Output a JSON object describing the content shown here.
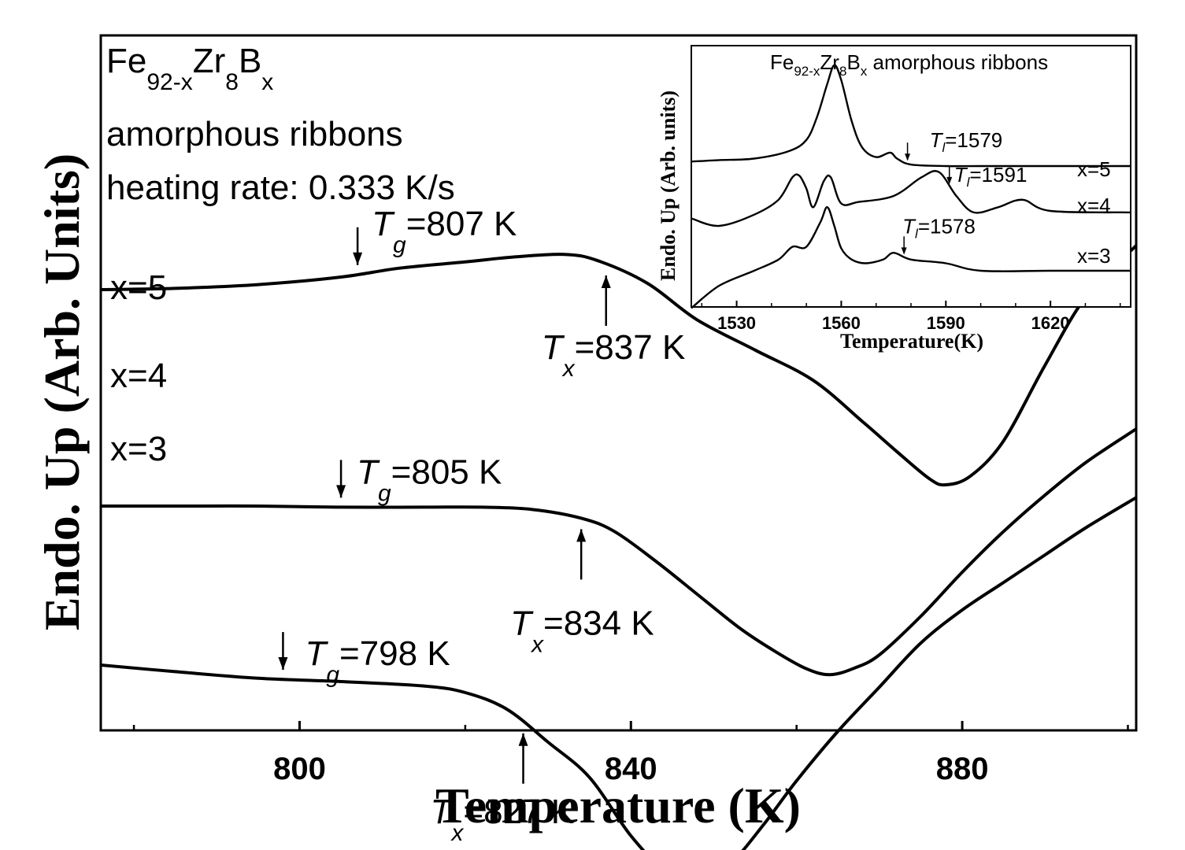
{
  "chart_data": [
    {
      "type": "line",
      "title": "",
      "xlabel": "Temperature (K)",
      "ylabel": "Endo. Up (Arb. Units)",
      "xlim": [
        776,
        901
      ],
      "x_ticks": [
        800,
        840,
        880
      ],
      "legend_text": {
        "line1_main": "Fe",
        "line1_sub1": "92-x",
        "line1_mid": "Zr",
        "line1_sub2": "8",
        "line1_end": "B",
        "line1_sub3": "x",
        "line2": "amorphous ribbons",
        "line3": "heating rate: 0.333 K/s"
      },
      "series": [
        {
          "name": "x=5",
          "x": [
            776,
            785,
            795,
            805,
            812,
            820,
            826,
            832,
            836,
            842,
            848,
            855,
            862,
            868,
            872,
            876,
            878,
            881,
            885,
            890,
            895,
            901
          ],
          "y": [
            0.1,
            0.11,
            0.14,
            0.2,
            0.27,
            0.32,
            0.36,
            0.38,
            0.33,
            0.15,
            -0.14,
            -0.38,
            -0.62,
            -0.95,
            -1.18,
            -1.4,
            -1.45,
            -1.38,
            -1.1,
            -0.5,
            0.05,
            0.45
          ],
          "annotations": [
            {
              "label_T": "T",
              "label_sub": "g",
              "label_rest": "=807 K",
              "x": 807,
              "direction": "down"
            },
            {
              "label_T": "T",
              "label_sub": "x",
              "label_rest": "=837 K",
              "x": 837,
              "direction": "up"
            }
          ]
        },
        {
          "name": "x=4",
          "x": [
            776,
            785,
            795,
            805,
            815,
            822,
            828,
            834,
            838,
            843,
            848,
            853,
            857,
            861,
            864,
            867,
            870,
            875,
            880,
            885,
            890,
            895,
            901
          ],
          "y": [
            -0.95,
            -0.95,
            -0.95,
            -0.96,
            -0.96,
            -0.96,
            -0.98,
            -1.06,
            -1.18,
            -1.45,
            -1.75,
            -2.05,
            -2.25,
            -2.42,
            -2.48,
            -2.42,
            -2.3,
            -1.95,
            -1.55,
            -1.18,
            -0.85,
            -0.55,
            -0.25
          ],
          "annotations": [
            {
              "label_T": "T",
              "label_sub": "g",
              "label_rest": "=805 K",
              "x": 805,
              "direction": "down"
            },
            {
              "label_T": "T",
              "label_sub": "x",
              "label_rest": "=834 K",
              "x": 834,
              "direction": "up"
            }
          ]
        },
        {
          "name": "x=3",
          "x": [
            776,
            785,
            795,
            805,
            815,
            820,
            825,
            830,
            835,
            840,
            844,
            848,
            852,
            856,
            860,
            865,
            870,
            875,
            880,
            885,
            890,
            895,
            901
          ],
          "y": [
            -1.8,
            -1.86,
            -1.92,
            -1.95,
            -1.99,
            -2.05,
            -2.2,
            -2.5,
            -2.82,
            -3.35,
            -3.65,
            -3.75,
            -3.6,
            -3.25,
            -2.85,
            -2.4,
            -2.0,
            -1.6,
            -1.3,
            -1.05,
            -0.8,
            -0.55,
            -0.28
          ],
          "annotations": [
            {
              "label_T": "T",
              "label_sub": "g",
              "label_rest": "=798 K",
              "x": 798,
              "direction": "down"
            },
            {
              "label_T": "T",
              "label_sub": "x",
              "label_rest": "=827 K",
              "x": 827,
              "direction": "up"
            }
          ]
        }
      ]
    },
    {
      "type": "line",
      "title_main": "Fe",
      "title_sub1": "92-x",
      "title_mid": "Zr",
      "title_sub2": "8",
      "title_end": "B",
      "title_sub3": "x",
      "title_rest": " amorphous ribbons",
      "xlabel": "Temperature(K)",
      "ylabel": "Endo. Up (Arb. units)",
      "xlim": [
        1517,
        1643
      ],
      "x_ticks": [
        1530,
        1560,
        1590,
        1620
      ],
      "series": [
        {
          "name": "x=5",
          "x": [
            1517,
            1525,
            1535,
            1545,
            1550,
            1553,
            1556,
            1558,
            1560,
            1563,
            1566,
            1570,
            1574,
            1576,
            1580,
            1590,
            1600,
            1620,
            1643
          ],
          "y": [
            0.26,
            0.28,
            0.3,
            0.4,
            0.55,
            0.85,
            1.3,
            1.55,
            1.35,
            0.8,
            0.45,
            0.32,
            0.38,
            0.3,
            0.22,
            0.2,
            0.2,
            0.2,
            0.2
          ],
          "annotations": [
            {
              "label_T": "T",
              "label_sub": "l",
              "label_rest": "=1579",
              "x": 1579
            }
          ]
        },
        {
          "name": "x=4",
          "x": [
            1517,
            1525,
            1535,
            1542,
            1546,
            1548,
            1550,
            1552,
            1555,
            1557,
            1560,
            1565,
            1575,
            1583,
            1588,
            1593,
            1598,
            1605,
            1612,
            1620,
            1643
          ],
          "y": [
            -0.5,
            -0.6,
            -0.45,
            -0.25,
            0.05,
            0.07,
            -0.1,
            -0.35,
            0.0,
            0.05,
            -0.3,
            -0.28,
            -0.2,
            0.05,
            0.12,
            -0.2,
            -0.42,
            -0.35,
            -0.25,
            -0.4,
            -0.42
          ],
          "annotations": [
            {
              "label_T": "T",
              "label_sub": "l",
              "label_rest": "=1591",
              "x": 1591
            }
          ]
        },
        {
          "name": "x=3",
          "x": [
            1517,
            1525,
            1535,
            1542,
            1546,
            1550,
            1554,
            1556,
            1558,
            1560,
            1563,
            1567,
            1572,
            1575,
            1580,
            1590,
            1600,
            1620,
            1643
          ],
          "y": [
            -1.7,
            -1.4,
            -1.2,
            -1.05,
            -0.88,
            -0.88,
            -0.55,
            -0.35,
            -0.6,
            -0.9,
            -1.05,
            -1.1,
            -1.05,
            -0.96,
            -1.05,
            -1.1,
            -1.2,
            -1.2,
            -1.2
          ],
          "annotations": [
            {
              "label_T": "T",
              "label_sub": "l",
              "label_rest": "=1578",
              "x": 1578
            }
          ]
        }
      ]
    }
  ]
}
